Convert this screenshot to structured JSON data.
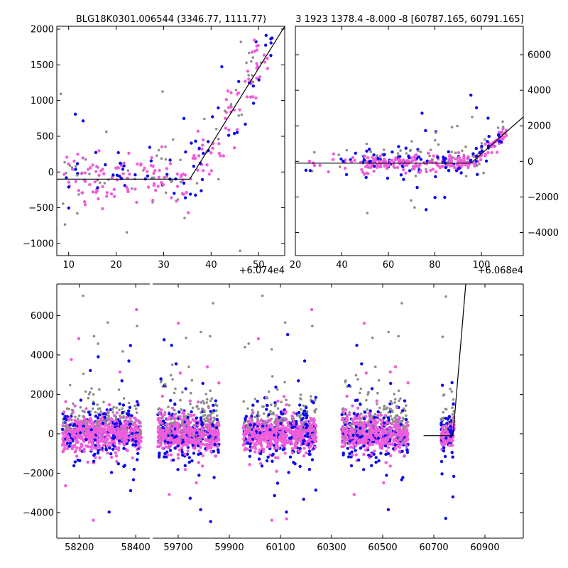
{
  "figure_titles": {
    "left": "BLG18K0301.006544 (3346.77, 1111.77)",
    "right": "3 1923 1378.4 -8.000 -8 [60787.165, 60791.165]"
  },
  "colors": {
    "blue": "#0a0aeb",
    "magenta": "#ef5ddc",
    "gray": "#8c8c8c",
    "line": "#000000"
  },
  "chart_data": [
    {
      "panel": "zoom-left",
      "type": "scatter",
      "x_offset_label": "+6.074e4",
      "xlim": [
        7.5,
        55.5
      ],
      "ylim": [
        -1170,
        2040
      ],
      "xticks": [
        10,
        20,
        30,
        40,
        50
      ],
      "xtick_labels": [
        "10",
        "20",
        "30",
        "40",
        "50"
      ],
      "yticks": [
        -1000,
        -500,
        0,
        500,
        1000,
        1500,
        2000
      ],
      "ytick_labels": [
        "−1000",
        "−500",
        "0",
        "500",
        "1000",
        "1500",
        "2000"
      ],
      "model_line": {
        "x": [
          7.5,
          35.5,
          55.5
        ],
        "y": [
          -100,
          -100,
          2040
        ]
      }
    },
    {
      "panel": "zoom-right",
      "type": "scatter",
      "x_offset_label": "+6.068e4",
      "xlim": [
        20,
        118
      ],
      "ylim": [
        -5300,
        7600
      ],
      "xticks": [
        20,
        40,
        60,
        80,
        100
      ],
      "xtick_labels": [
        "20",
        "40",
        "60",
        "80",
        "100"
      ],
      "yticks": [
        -4000,
        -2000,
        0,
        2000,
        4000,
        6000
      ],
      "ytick_labels": [
        "−4000",
        "−2000",
        "0",
        "2000",
        "4000",
        "6000"
      ],
      "model_line": {
        "x": [
          20,
          95.5,
          118
        ],
        "y": [
          -100,
          -100,
          2500
        ]
      }
    },
    {
      "panel": "full-lightcurve",
      "type": "scatter",
      "ylim": [
        -5300,
        7600
      ],
      "yticks": [
        -4000,
        -2000,
        0,
        2000,
        4000,
        6000
      ],
      "ytick_labels": [
        "−4000",
        "−2000",
        "0",
        "2000",
        "4000",
        "6000"
      ],
      "segments": [
        {
          "xlim": [
            58120,
            58450
          ],
          "xticks": [
            58200,
            58400
          ],
          "xtick_labels": [
            "58200",
            "58400"
          ]
        },
        {
          "xlim": [
            59600,
            61050
          ],
          "xticks": [
            59700,
            59900,
            60100,
            60300,
            60500,
            60700,
            60900
          ],
          "xtick_labels": [
            "59700",
            "59900",
            "60100",
            "60300",
            "60500",
            "60700",
            "60900"
          ]
        }
      ],
      "season_ranges": [
        [
          58140,
          58420
        ],
        [
          59620,
          59860
        ],
        [
          59955,
          60240
        ],
        [
          60340,
          60600
        ]
      ],
      "model_line": {
        "x": [
          60660,
          60775,
          60825
        ],
        "y": [
          -100,
          -100,
          7600
        ]
      }
    }
  ]
}
